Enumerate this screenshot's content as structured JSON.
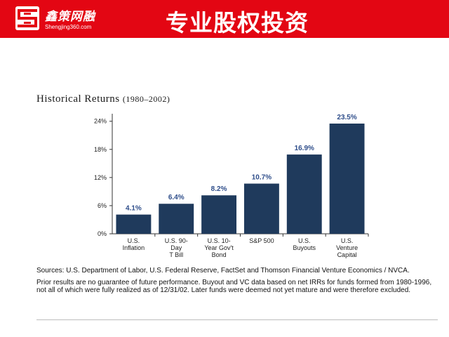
{
  "header": {
    "brand_name": "鑫策网融",
    "brand_url": "Shengjing360.com",
    "title": "专业股权投资",
    "colors": {
      "banner": "#e30613",
      "text": "#ffffff"
    },
    "logo_icon": "company-logo-icon"
  },
  "chart_data": {
    "type": "bar",
    "title": "Historical Returns",
    "subtitle": "(1980–2002)",
    "categories": [
      [
        "U.S.",
        "Inflation"
      ],
      [
        "U.S. 90-",
        "Day",
        "T Bill"
      ],
      [
        "U.S. 10-",
        "Year Gov't",
        "Bond"
      ],
      [
        "S&P 500"
      ],
      [
        "U.S.",
        "Buyouts"
      ],
      [
        "U.S.",
        "Venture",
        "Capital"
      ]
    ],
    "values": [
      4.1,
      6.4,
      8.2,
      10.7,
      16.9,
      23.5
    ],
    "value_labels": [
      "4.1%",
      "6.4%",
      "8.2%",
      "10.7%",
      "16.9%",
      "23.5%"
    ],
    "ylim": [
      0,
      25
    ],
    "yticks": [
      0,
      6,
      12,
      18,
      24
    ],
    "ytick_labels": [
      "0%",
      "6%",
      "12%",
      "18%",
      "24%"
    ],
    "grid": false,
    "legend": "none",
    "colors": {
      "bar": "#1f3a5c",
      "value_label": "#2e4d8a",
      "axis": "#333333"
    }
  },
  "notes": {
    "sources": "Sources: U.S. Department of Labor, U.S. Federal Reserve, FactSet and Thomson Financial Venture Economics / NVCA.",
    "disclaimer": "Prior results are no guarantee of future performance. Buyout and VC data based on net IRRs for funds formed from 1980-1996, not all of which were fully realized as of 12/31/02. Later funds were deemed not yet mature and were therefore excluded."
  }
}
